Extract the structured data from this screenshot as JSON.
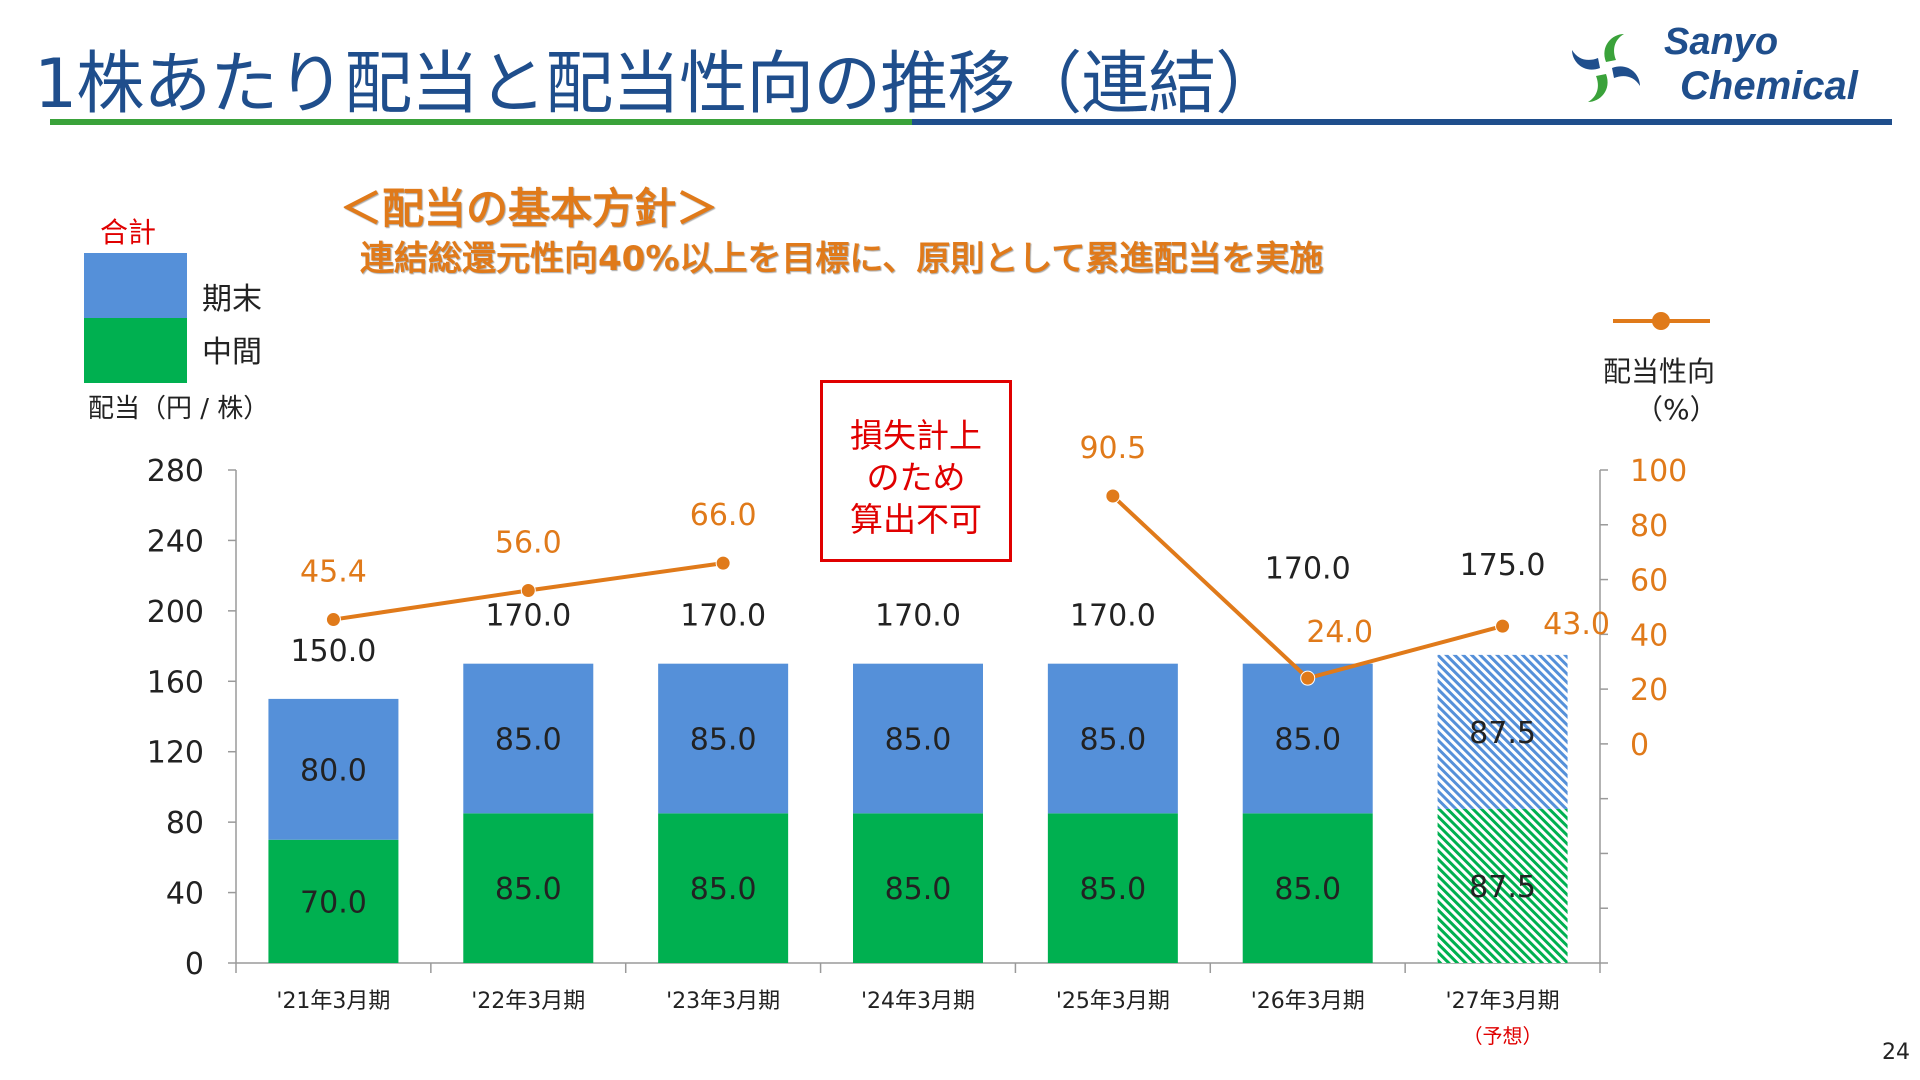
{
  "title": "1株あたり配当と配当性向の推移（連結）",
  "logo": {
    "line1": "Sanyo",
    "line2": "Chemical"
  },
  "policy": {
    "heading": "＜配当の基本方針＞",
    "text": "連結総還元性向40%以上を目標に、原則として累進配当を実施"
  },
  "legend": {
    "total": "合計",
    "final": "期末",
    "interim": "中間",
    "unit": "配当（円 / 株）",
    "ratio_label": "配当性向",
    "ratio_unit": "（%）"
  },
  "note": {
    "line1": "損失計上",
    "line2": "のため",
    "line3": "算出不可"
  },
  "page_number": "24",
  "colors": {
    "interim": "#00b050",
    "final": "#5590d9",
    "ratio": "#e07a1a",
    "title": "#1f4e8c",
    "note": "#e00000"
  },
  "chart_data": {
    "type": "bar",
    "stacked": true,
    "categories": [
      "'21年3月期",
      "'22年3月期",
      "'23年3月期",
      "'24年3月期",
      "'25年3月期",
      "'26年3月期",
      "'27年3月期"
    ],
    "forecast_label": "（予想）",
    "forecast_index": 6,
    "series": [
      {
        "name": "中間",
        "values": [
          70.0,
          85.0,
          85.0,
          85.0,
          85.0,
          85.0,
          87.5
        ]
      },
      {
        "name": "期末",
        "values": [
          80.0,
          85.0,
          85.0,
          85.0,
          85.0,
          85.0,
          87.5
        ]
      }
    ],
    "value_labels": {
      "interim": [
        "70.0",
        "85.0",
        "85.0",
        "85.0",
        "85.0",
        "85.0",
        "87.5"
      ],
      "final": [
        "80.0",
        "85.0",
        "85.0",
        "85.0",
        "85.0",
        "85.0",
        "87.5"
      ],
      "totals": [
        "150.0",
        "170.0",
        "170.0",
        "170.0",
        "170.0",
        "170.0",
        "175.0"
      ],
      "ratio": [
        "45.4",
        "56.0",
        "66.0",
        null,
        "90.5",
        "24.0",
        "43.0"
      ]
    },
    "totals": [
      150.0,
      170.0,
      170.0,
      170.0,
      170.0,
      170.0,
      175.0
    ],
    "ylim": [
      0,
      280
    ],
    "yticks": [
      0,
      40,
      80,
      120,
      160,
      200,
      240,
      280
    ],
    "line_series": {
      "name": "配当性向",
      "axis": "right",
      "values": [
        45.4,
        56.0,
        66.0,
        null,
        90.5,
        24.0,
        43.0
      ]
    },
    "y2ticks": [
      0,
      20,
      40,
      60,
      80,
      100
    ],
    "y2lim": [
      -80,
      100
    ],
    "grid": false
  }
}
